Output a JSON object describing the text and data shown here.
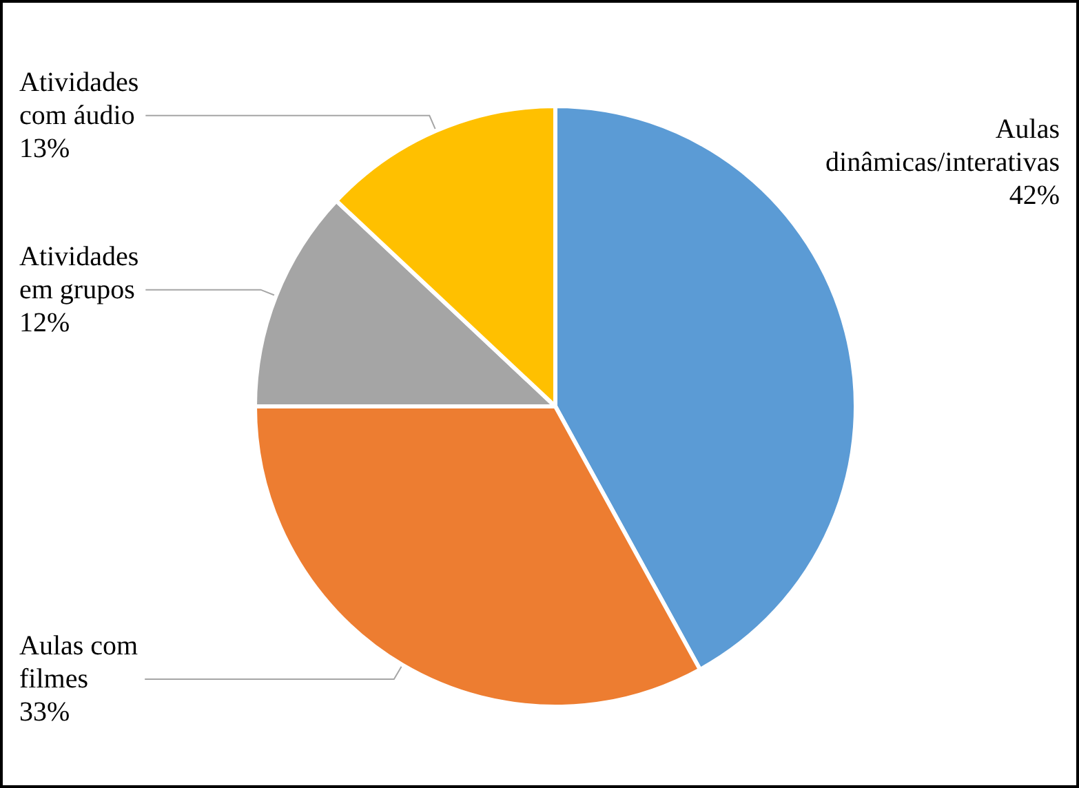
{
  "chart_data": {
    "type": "pie",
    "categories": [
      "Aulas dinâmicas/interativas",
      "Aulas com filmes",
      "Atividades em grupos",
      "Atividades com áudio"
    ],
    "values": [
      42,
      33,
      12,
      13
    ],
    "colors": [
      "#5b9bd5",
      "#ed7d31",
      "#a5a5a5",
      "#ffc000"
    ],
    "value_labels": [
      "42%",
      "33%",
      "12%",
      "13%"
    ],
    "legend": false
  }
}
